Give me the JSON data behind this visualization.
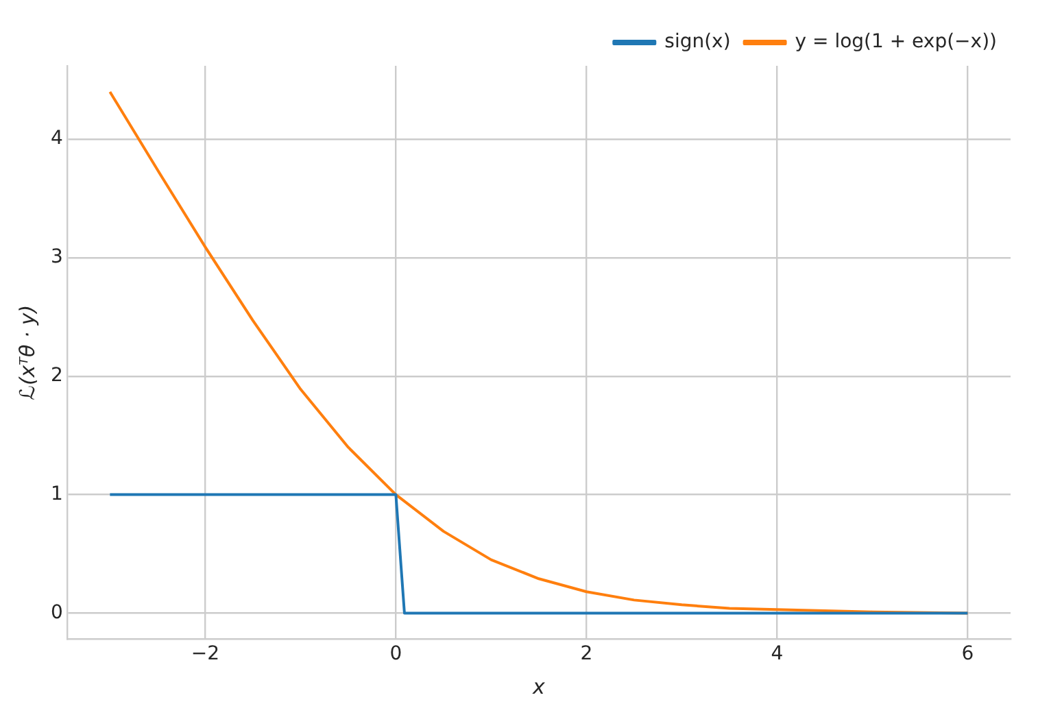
{
  "chart_data": {
    "type": "line",
    "xlabel": "x",
    "ylabel": "ℒ(xᵀθ · y)",
    "series": [
      {
        "name": "sign(x)",
        "color": "#1f77b4",
        "x": [
          -3,
          0,
          0.09,
          6
        ],
        "values": [
          1,
          1,
          0,
          0
        ]
      },
      {
        "name": "y = log(1 + exp(−x))",
        "color": "#ff7f0e",
        "x": [
          -3,
          -2.5,
          -2,
          -1.5,
          -1,
          -0.5,
          0,
          0.5,
          1,
          1.5,
          2,
          2.5,
          3,
          3.5,
          4,
          5,
          6
        ],
        "values": [
          4.4,
          3.74,
          3.09,
          2.47,
          1.89,
          1.4,
          1.0,
          0.69,
          0.45,
          0.29,
          0.18,
          0.11,
          0.07,
          0.04,
          0.03,
          0.01,
          0.0
        ]
      }
    ],
    "xlim": [
      -3.45,
      6.45
    ],
    "xticks": [
      {
        "value": -2,
        "label": "−2"
      },
      0,
      2,
      4,
      6
    ],
    "ylim": [
      -0.22,
      4.62
    ],
    "yticks": [
      0,
      1,
      2,
      3,
      4
    ],
    "grid": true,
    "legend": "top right",
    "marker": "none",
    "line_style": "solid"
  }
}
